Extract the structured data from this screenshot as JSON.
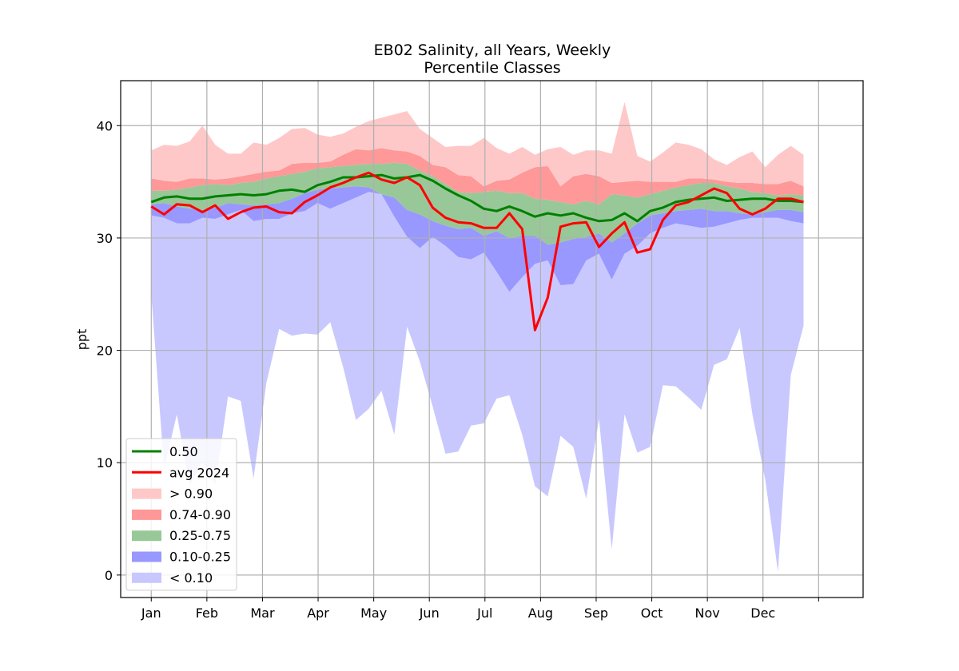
{
  "chart_data": {
    "type": "area",
    "title": "EB02 Salinity, all Years, Weekly",
    "subtitle": "Percentile Classes",
    "xlabel": "",
    "ylabel": "ppt",
    "xlim": [
      -0.55,
      12.8
    ],
    "ylim": [
      -2,
      44
    ],
    "xticks": [
      0,
      1,
      2,
      3,
      4,
      5,
      6,
      7,
      8,
      9,
      10,
      11,
      12
    ],
    "xtick_labels": [
      "Jan",
      "Feb",
      "Mar",
      "Apr",
      "May",
      "Jun",
      "Jul",
      "Aug",
      "Sep",
      "Oct",
      "Nov",
      "Dec",
      ""
    ],
    "yticks": [
      0,
      10,
      20,
      30,
      40
    ],
    "ytick_labels": [
      "0",
      "10",
      "20",
      "30",
      "40"
    ],
    "grid": true,
    "legend_position": "lower-left",
    "colors": {
      "p50": "#008000",
      "avg": "#ff0000",
      "gt90": "#ffc8c8",
      "p74_90": "#ff9898",
      "p25_75": "#98c898",
      "p10_25": "#9898ff",
      "lt10": "#c8c8ff"
    },
    "legend": [
      {
        "kind": "line",
        "label": "0.50",
        "color": "#008000"
      },
      {
        "kind": "line",
        "label": "avg 2024",
        "color": "#ff0000"
      },
      {
        "kind": "patch",
        "label": "> 0.90",
        "color": "#ffc8c8"
      },
      {
        "kind": "patch",
        "label": "0.74-0.90",
        "color": "#ff9898"
      },
      {
        "kind": "patch",
        "label": "0.25-0.75",
        "color": "#98c898"
      },
      {
        "kind": "patch",
        "label": "0.10-0.25",
        "color": "#9898ff"
      },
      {
        "kind": "patch",
        "label": "< 0.10",
        "color": "#c8c8ff"
      }
    ],
    "x": [
      0,
      0.23,
      0.46,
      0.69,
      0.92,
      1.15,
      1.38,
      1.61,
      1.84,
      2.07,
      2.3,
      2.53,
      2.76,
      2.99,
      3.22,
      3.45,
      3.68,
      3.91,
      4.14,
      4.37,
      4.6,
      4.83,
      5.06,
      5.29,
      5.52,
      5.75,
      5.98,
      6.21,
      6.44,
      6.67,
      6.9,
      7.13,
      7.36,
      7.59,
      7.82,
      8.05,
      8.28,
      8.51,
      8.74,
      8.97,
      9.2,
      9.43,
      9.66,
      9.89,
      10.12,
      10.35,
      10.58,
      10.81,
      11.04,
      11.27,
      11.5,
      11.73
    ],
    "series": [
      {
        "key": "min",
        "values": [
          25.0,
          9.5,
          14.3,
          8.0,
          10.1,
          8.0,
          15.9,
          15.5,
          8.6,
          17.1,
          21.9,
          21.3,
          21.5,
          21.4,
          22.5,
          18.5,
          13.8,
          14.8,
          16.4,
          12.5,
          22.1,
          19.0,
          15.0,
          10.8,
          11.0,
          13.3,
          13.5,
          15.7,
          16.0,
          12.5,
          7.9,
          7.0,
          12.4,
          11.4,
          6.8,
          13.9,
          2.3,
          14.3,
          10.9,
          11.4,
          16.9,
          16.8,
          15.8,
          14.7,
          18.7,
          19.2,
          22.0,
          14.3,
          8.5,
          0.3,
          17.8,
          22.2
        ]
      },
      {
        "key": "p10",
        "values": [
          32.0,
          31.8,
          31.3,
          31.3,
          31.8,
          31.7,
          32.1,
          32.5,
          31.5,
          31.7,
          31.7,
          32.2,
          32.4,
          33.1,
          32.6,
          33.1,
          33.6,
          34.1,
          33.9,
          31.9,
          30.1,
          29.1,
          30.1,
          29.3,
          28.3,
          28.1,
          28.7,
          27.0,
          25.2,
          26.5,
          27.7,
          28.0,
          25.8,
          25.9,
          28.0,
          28.6,
          26.3,
          28.6,
          29.3,
          30.4,
          30.9,
          31.3,
          31.1,
          30.9,
          31.0,
          31.3,
          31.6,
          31.8,
          31.8,
          31.8,
          31.5,
          31.3
        ]
      },
      {
        "key": "p25",
        "values": [
          33.0,
          33.1,
          32.8,
          32.6,
          32.5,
          32.7,
          33.1,
          33.0,
          32.9,
          33.0,
          33.1,
          33.5,
          34.0,
          34.3,
          34.4,
          34.5,
          34.6,
          34.5,
          33.9,
          33.6,
          32.5,
          32.1,
          31.5,
          31.1,
          30.8,
          30.9,
          30.2,
          30.6,
          30.0,
          30.2,
          30.2,
          29.4,
          29.6,
          29.9,
          30.1,
          30.4,
          29.6,
          30.4,
          31.3,
          32.0,
          32.2,
          32.4,
          32.5,
          32.6,
          32.4,
          32.4,
          32.2,
          32.1,
          32.3,
          32.5,
          32.5,
          32.3
        ]
      },
      {
        "key": "p75",
        "values": [
          34.2,
          34.2,
          34.3,
          34.5,
          34.7,
          34.8,
          34.7,
          34.9,
          35.0,
          35.3,
          35.5,
          35.7,
          35.9,
          36.2,
          36.3,
          36.4,
          36.5,
          36.6,
          36.6,
          36.7,
          36.6,
          36.0,
          35.5,
          34.8,
          34.1,
          34.0,
          34.1,
          34.2,
          34.0,
          34.0,
          33.5,
          33.4,
          33.2,
          33.0,
          33.3,
          33.0,
          33.9,
          33.8,
          33.6,
          33.9,
          34.2,
          34.5,
          34.7,
          34.9,
          34.9,
          34.6,
          34.4,
          34.1,
          34.0,
          33.8,
          33.9,
          33.8
        ]
      },
      {
        "key": "p90",
        "values": [
          35.3,
          35.1,
          35.0,
          35.3,
          35.3,
          35.2,
          35.3,
          35.5,
          35.7,
          35.9,
          36.0,
          36.6,
          36.7,
          36.7,
          36.8,
          37.4,
          37.9,
          37.8,
          38.0,
          37.8,
          37.7,
          37.3,
          36.5,
          36.3,
          35.6,
          35.5,
          34.6,
          35.1,
          35.2,
          35.8,
          36.3,
          36.4,
          34.6,
          35.5,
          35.7,
          35.5,
          34.9,
          35.0,
          35.1,
          35.0,
          35.0,
          35.0,
          35.3,
          35.3,
          35.2,
          35.0,
          34.9,
          34.9,
          34.8,
          34.8,
          35.1,
          34.6
        ]
      },
      {
        "key": "max",
        "values": [
          37.8,
          38.3,
          38.2,
          38.6,
          40.0,
          38.3,
          37.5,
          37.5,
          38.5,
          38.3,
          38.9,
          39.7,
          39.8,
          39.2,
          39.0,
          39.3,
          39.9,
          40.4,
          40.7,
          41.0,
          41.3,
          39.7,
          38.9,
          38.1,
          38.2,
          38.2,
          38.9,
          38.0,
          37.5,
          38.1,
          37.4,
          37.9,
          38.1,
          37.4,
          37.8,
          37.8,
          37.5,
          42.1,
          37.3,
          36.8,
          37.6,
          38.5,
          38.3,
          37.9,
          37.0,
          36.5,
          37.2,
          37.7,
          36.3,
          37.4,
          38.2,
          37.4
        ]
      },
      {
        "key": "p50",
        "name": "0.50",
        "values": [
          33.2,
          33.6,
          33.7,
          33.5,
          33.5,
          33.7,
          33.8,
          33.9,
          33.8,
          33.9,
          34.2,
          34.3,
          34.1,
          34.7,
          35.0,
          35.4,
          35.4,
          35.5,
          35.6,
          35.3,
          35.4,
          35.6,
          35.1,
          34.4,
          33.8,
          33.3,
          32.6,
          32.4,
          32.8,
          32.4,
          31.9,
          32.2,
          32.0,
          32.2,
          31.8,
          31.5,
          31.6,
          32.2,
          31.5,
          32.4,
          32.7,
          33.2,
          33.4,
          33.5,
          33.6,
          33.3,
          33.4,
          33.5,
          33.5,
          33.3,
          33.3,
          33.2
        ]
      },
      {
        "key": "avg",
        "name": "avg 2024",
        "values": [
          32.8,
          32.1,
          33.0,
          32.9,
          32.3,
          32.9,
          31.7,
          32.3,
          32.7,
          32.8,
          32.3,
          32.2,
          33.2,
          33.8,
          34.5,
          34.9,
          35.4,
          35.8,
          35.2,
          34.9,
          35.4,
          34.7,
          32.7,
          31.8,
          31.4,
          31.3,
          30.9,
          30.9,
          32.2,
          30.8,
          21.8,
          24.7,
          31.0,
          31.3,
          31.4,
          29.2,
          30.4,
          31.4,
          28.7,
          29.0,
          31.6,
          32.9,
          33.2,
          33.8,
          34.4,
          34.0,
          32.6,
          32.1,
          32.6,
          33.5,
          33.5,
          33.2
        ]
      }
    ]
  }
}
